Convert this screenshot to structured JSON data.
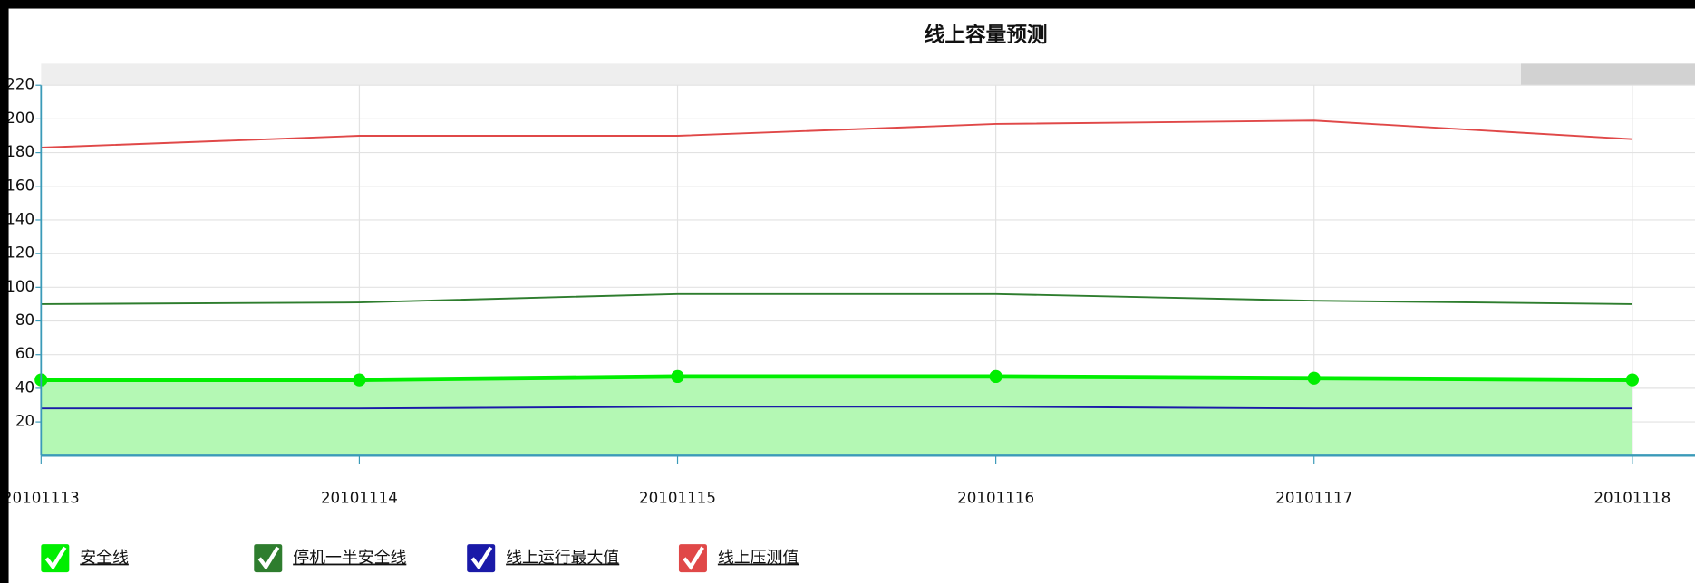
{
  "chart_data": {
    "type": "line",
    "title": "线上容量预测",
    "categories": [
      "20101113",
      "20101114",
      "20101115",
      "20101116",
      "20101117",
      "20101118"
    ],
    "series": [
      {
        "name": "安全线",
        "color": "#00ee00",
        "area": true,
        "markers": true,
        "values": [
          45,
          45,
          47,
          47,
          46,
          45
        ]
      },
      {
        "name": "停机一半安全线",
        "color": "#2e7d2e",
        "values": [
          90,
          91,
          96,
          96,
          92,
          90
        ]
      },
      {
        "name": "线上运行最大值",
        "color": "#1a1aa8",
        "values": [
          28,
          28,
          29,
          29,
          28,
          28
        ]
      },
      {
        "name": "线上压测值",
        "color": "#e04848",
        "values": [
          183,
          190,
          190,
          197,
          199,
          188
        ]
      }
    ],
    "ylim": [
      0,
      220
    ],
    "yticks": [
      20,
      40,
      60,
      80,
      100,
      120,
      140,
      160,
      180,
      200,
      220
    ],
    "grid": true
  }
}
